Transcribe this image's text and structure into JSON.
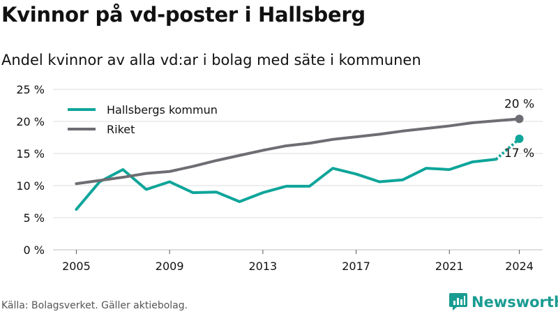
{
  "title": "Kvinnor på vd-poster i Hallsberg",
  "subtitle": "Andel kvinnor av alla vd:ar i bolag med säte i kommunen",
  "source": "Källa: Bolagsverket. Gäller aktiebolag.",
  "brand": {
    "name": "Newsworthy",
    "icon": "newsworthy-logo-icon"
  },
  "colors": {
    "hallsberg": "#0ea59a",
    "riket": "#6e6d73",
    "grid": "#dddddd",
    "text": "#111111"
  },
  "chart_data": {
    "type": "line",
    "ylim": [
      0,
      25
    ],
    "xlim": [
      2004,
      2025
    ],
    "y_ticks": [
      0,
      5,
      10,
      15,
      20,
      25
    ],
    "y_tick_labels": [
      "0 %",
      "5 %",
      "10 %",
      "15 %",
      "20 %",
      "25 %"
    ],
    "x_ticks": [
      2005,
      2009,
      2013,
      2017,
      2021,
      2024
    ],
    "x_tick_labels": [
      "2005",
      "2009",
      "2013",
      "2017",
      "2021",
      "2024"
    ],
    "grid": true,
    "legend": "top-left",
    "series": [
      {
        "name": "Hallsbergs kommun",
        "color": "#0ea59a",
        "x": [
          2005,
          2006,
          2007,
          2008,
          2009,
          2010,
          2011,
          2012,
          2013,
          2014,
          2015,
          2016,
          2017,
          2018,
          2019,
          2020,
          2021,
          2022,
          2023,
          2024
        ],
        "y": [
          6.3,
          10.6,
          12.5,
          9.4,
          10.6,
          8.9,
          9.0,
          7.5,
          8.9,
          9.9,
          9.9,
          12.7,
          11.8,
          10.6,
          10.9,
          12.7,
          12.5,
          13.7,
          14.1,
          17.3
        ],
        "end_label": "17 %"
      },
      {
        "name": "Riket",
        "color": "#6e6d73",
        "x": [
          2005,
          2006,
          2007,
          2008,
          2009,
          2010,
          2011,
          2012,
          2013,
          2014,
          2015,
          2016,
          2017,
          2018,
          2019,
          2020,
          2021,
          2022,
          2023,
          2024
        ],
        "y": [
          10.3,
          10.8,
          11.3,
          11.9,
          12.2,
          13.0,
          13.9,
          14.7,
          15.5,
          16.2,
          16.6,
          17.2,
          17.6,
          18.0,
          18.5,
          18.9,
          19.3,
          19.8,
          20.1,
          20.4
        ],
        "end_label": "20 %"
      }
    ]
  }
}
